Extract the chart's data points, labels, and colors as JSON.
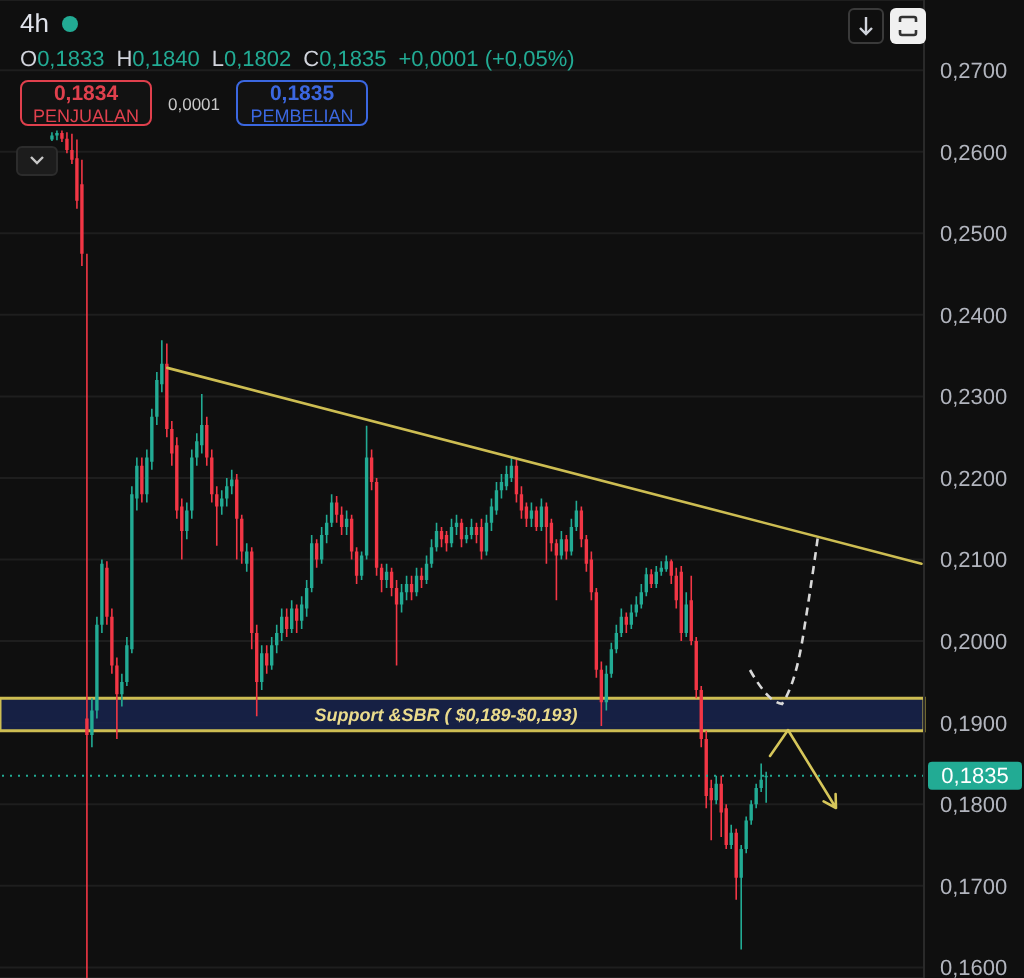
{
  "chart_data": {
    "type": "candlestick",
    "title": "4h",
    "annotations": [
      "O0,1833",
      "H0,1840",
      "L0,1802",
      "C0,1835",
      "+0,0001 (+0,05%)",
      "0,1834",
      "PENJUALAN",
      "0,0001",
      "0,1835",
      "PEMBELIAN"
    ],
    "categories": [
      null,
      null,
      null,
      null,
      null,
      null,
      null,
      null,
      null,
      null,
      null,
      null,
      null,
      null,
      null,
      null,
      null,
      null,
      null,
      null,
      null,
      null,
      null,
      null,
      null,
      null,
      null,
      null,
      null,
      null,
      null,
      null,
      null,
      null,
      null,
      null,
      null,
      null,
      null,
      null,
      null,
      null,
      null,
      null,
      null,
      null,
      null,
      null,
      null,
      null,
      null,
      null,
      null,
      null,
      null,
      null,
      null,
      null,
      null,
      null,
      null,
      null,
      null,
      null,
      null,
      null,
      null,
      null,
      null,
      null,
      null,
      null,
      null,
      null,
      null,
      null,
      null,
      null,
      null,
      null,
      null,
      null,
      null,
      null,
      null,
      null,
      null,
      null,
      null,
      null,
      null,
      null,
      null,
      null,
      null,
      null,
      null,
      null,
      null,
      null,
      null,
      null,
      null,
      null,
      null,
      null,
      null,
      null,
      null,
      null,
      null,
      null,
      null,
      null,
      null,
      null,
      null,
      null,
      null,
      null,
      null,
      null,
      null,
      null,
      null,
      null,
      null,
      null,
      null,
      null,
      null,
      null,
      null,
      null,
      null,
      null,
      null,
      null,
      null,
      null,
      null,
      null,
      null,
      null,
      null,
      null,
      null,
      null,
      null,
      null,
      null,
      null,
      null,
      null,
      null,
      null,
      null,
      null,
      null,
      null,
      null,
      null,
      null,
      null,
      null,
      null,
      null,
      null,
      null,
      null,
      null,
      null,
      null,
      null,
      null,
      null,
      null,
      null,
      null,
      null,
      null,
      null,
      null,
      null,
      null
    ],
    "ohlc": [
      null,
      null,
      null,
      null,
      null,
      null,
      null,
      null,
      null,
      null,
      [
        0.2615,
        0.2624,
        0.2613,
        0.262
      ],
      [
        0.262,
        0.2626,
        0.2614,
        0.2623
      ],
      [
        0.2623,
        0.2626,
        0.2612,
        0.2616
      ],
      [
        0.2616,
        0.2624,
        0.2598,
        0.2602
      ],
      [
        0.2602,
        0.2622,
        0.2585,
        0.259
      ],
      [
        0.2592,
        0.2615,
        0.253,
        0.254
      ],
      [
        0.256,
        0.259,
        0.246,
        0.2475
      ],
      [
        0.1905,
        0.2475,
        0.1587,
        0.1885
      ],
      [
        0.1885,
        0.193,
        0.187,
        0.1915
      ],
      [
        0.1915,
        0.203,
        0.1905,
        0.202
      ],
      [
        0.202,
        0.21,
        0.201,
        0.2095
      ],
      [
        0.209,
        0.2098,
        0.202,
        0.203
      ],
      [
        0.203,
        0.204,
        0.196,
        0.197
      ],
      [
        0.197,
        0.198,
        0.188,
        0.1935
      ],
      [
        0.1935,
        0.196,
        0.192,
        0.195
      ],
      [
        0.195,
        0.2005,
        0.1945,
        0.1995
      ],
      [
        0.199,
        0.219,
        0.1985,
        0.218
      ],
      [
        0.2175,
        0.2225,
        0.216,
        0.2215
      ],
      [
        0.2215,
        0.2225,
        0.217,
        0.218
      ],
      [
        0.218,
        0.2235,
        0.217,
        0.2225
      ],
      [
        0.222,
        0.2285,
        0.221,
        0.2275
      ],
      [
        0.2275,
        0.233,
        0.2265,
        0.232
      ],
      [
        0.2315,
        0.2369,
        0.2305,
        0.234
      ],
      [
        0.234,
        0.2365,
        0.225,
        0.226
      ],
      [
        0.226,
        0.227,
        0.2215,
        0.223
      ],
      [
        0.224,
        0.225,
        0.215,
        0.216
      ],
      [
        0.2165,
        0.2175,
        0.21,
        0.2135
      ],
      [
        0.2135,
        0.217,
        0.2125,
        0.216
      ],
      [
        0.216,
        0.2235,
        0.215,
        0.2225
      ],
      [
        0.2225,
        0.2255,
        0.2215,
        0.2245
      ],
      [
        0.224,
        0.2303,
        0.223,
        0.2265
      ],
      [
        0.2265,
        0.2275,
        0.2215,
        0.2225
      ],
      [
        0.2225,
        0.2235,
        0.217,
        0.218
      ],
      [
        0.218,
        0.219,
        0.2117,
        0.2165
      ],
      [
        0.2165,
        0.2185,
        0.2155,
        0.2175
      ],
      [
        0.2175,
        0.22,
        0.2165,
        0.219
      ],
      [
        0.219,
        0.221,
        0.218,
        0.2198
      ],
      [
        0.2198,
        0.2205,
        0.21,
        0.215
      ],
      [
        0.215,
        0.2155,
        0.2095,
        0.211
      ],
      [
        0.2095,
        0.212,
        0.2085,
        0.211
      ],
      [
        0.211,
        0.2115,
        0.199,
        0.201
      ],
      [
        0.201,
        0.202,
        0.1908,
        0.195
      ],
      [
        0.195,
        0.1995,
        0.194,
        0.1985
      ],
      [
        0.1985,
        0.1995,
        0.196,
        0.197
      ],
      [
        0.197,
        0.2005,
        0.1965,
        0.1995
      ],
      [
        0.1995,
        0.202,
        0.1985,
        0.201
      ],
      [
        0.201,
        0.204,
        0.2,
        0.203
      ],
      [
        0.203,
        0.204,
        0.2005,
        0.2015
      ],
      [
        0.2015,
        0.205,
        0.201,
        0.204
      ],
      [
        0.204,
        0.2045,
        0.201,
        0.2025
      ],
      [
        0.2025,
        0.2055,
        0.2015,
        0.2045
      ],
      [
        0.204,
        0.2075,
        0.203,
        0.2065
      ],
      [
        0.2065,
        0.213,
        0.206,
        0.212
      ],
      [
        0.212,
        0.2125,
        0.209,
        0.21
      ],
      [
        0.21,
        0.214,
        0.2095,
        0.213
      ],
      [
        0.213,
        0.2155,
        0.212,
        0.2145
      ],
      [
        0.2145,
        0.218,
        0.214,
        0.217
      ],
      [
        0.217,
        0.2178,
        0.2145,
        0.2155
      ],
      [
        0.2155,
        0.2165,
        0.213,
        0.214
      ],
      [
        0.214,
        0.216,
        0.213,
        0.215
      ],
      [
        0.215,
        0.2155,
        0.21,
        0.211
      ],
      [
        0.211,
        0.2115,
        0.207,
        0.208
      ],
      [
        0.208,
        0.211,
        0.2075,
        0.2105
      ],
      [
        0.2105,
        0.2264,
        0.21,
        0.2225
      ],
      [
        0.2225,
        0.2235,
        0.2185,
        0.2195
      ],
      [
        0.2195,
        0.22,
        0.208,
        0.209
      ],
      [
        0.209,
        0.2095,
        0.206,
        0.2075
      ],
      [
        0.2075,
        0.2095,
        0.2065,
        0.2085
      ],
      [
        0.2085,
        0.209,
        0.2055,
        0.2065
      ],
      [
        0.2065,
        0.2075,
        0.197,
        0.2045
      ],
      [
        0.2045,
        0.207,
        0.2035,
        0.206
      ],
      [
        0.206,
        0.208,
        0.205,
        0.207
      ],
      [
        0.207,
        0.208,
        0.205,
        0.206
      ],
      [
        0.206,
        0.209,
        0.2055,
        0.208
      ],
      [
        0.208,
        0.209,
        0.2065,
        0.2075
      ],
      [
        0.2075,
        0.2105,
        0.207,
        0.2095
      ],
      [
        0.2095,
        0.2125,
        0.209,
        0.2115
      ],
      [
        0.2115,
        0.2145,
        0.211,
        0.2135
      ],
      [
        0.2135,
        0.214,
        0.2115,
        0.2125
      ],
      [
        0.213,
        0.2135,
        0.211,
        0.212
      ],
      [
        0.212,
        0.215,
        0.2115,
        0.214
      ],
      [
        0.214,
        0.2155,
        0.213,
        0.2145
      ],
      [
        0.2145,
        0.215,
        0.2115,
        0.2125
      ],
      [
        0.2125,
        0.214,
        0.212,
        0.213
      ],
      [
        0.213,
        0.215,
        0.2125,
        0.214
      ],
      [
        0.214,
        0.2145,
        0.212,
        0.213
      ],
      [
        0.214,
        0.215,
        0.21,
        0.211
      ],
      [
        0.211,
        0.2155,
        0.2105,
        0.2145
      ],
      [
        0.2145,
        0.2175,
        0.2135,
        0.2165
      ],
      [
        0.216,
        0.2195,
        0.2155,
        0.2185
      ],
      [
        0.2185,
        0.2205,
        0.2175,
        0.2195
      ],
      [
        0.219,
        0.2215,
        0.2185,
        0.2205
      ],
      [
        0.22,
        0.2227,
        0.2195,
        0.2215
      ],
      [
        0.2215,
        0.2222,
        0.217,
        0.218
      ],
      [
        0.218,
        0.219,
        0.215,
        0.216
      ],
      [
        0.2165,
        0.217,
        0.214,
        0.215
      ],
      [
        0.215,
        0.217,
        0.214,
        0.216
      ],
      [
        0.216,
        0.2165,
        0.2135,
        0.214
      ],
      [
        0.214,
        0.2175,
        0.2135,
        0.2165
      ],
      [
        0.2165,
        0.217,
        0.2095,
        0.214
      ],
      [
        0.2145,
        0.215,
        0.211,
        0.212
      ],
      [
        0.212,
        0.2125,
        0.205,
        0.2105
      ],
      [
        0.2105,
        0.2135,
        0.21,
        0.2125
      ],
      [
        0.2125,
        0.213,
        0.21,
        0.211
      ],
      [
        0.211,
        0.215,
        0.2105,
        0.214
      ],
      [
        0.214,
        0.2172,
        0.2135,
        0.216
      ],
      [
        0.216,
        0.2165,
        0.2115,
        0.2125
      ],
      [
        0.2125,
        0.213,
        0.2085,
        0.2095
      ],
      [
        0.21,
        0.211,
        0.205,
        0.206
      ],
      [
        0.206,
        0.2065,
        0.1955,
        0.1965
      ],
      [
        0.1965,
        0.1975,
        0.1896,
        0.1925
      ],
      [
        0.1925,
        0.197,
        0.1915,
        0.196
      ],
      [
        0.196,
        0.1998,
        0.1955,
        0.199
      ],
      [
        0.199,
        0.202,
        0.1985,
        0.201
      ],
      [
        0.201,
        0.204,
        0.2005,
        0.203
      ],
      [
        0.203,
        0.2035,
        0.201,
        0.202
      ],
      [
        0.202,
        0.2045,
        0.2015,
        0.2035
      ],
      [
        0.2035,
        0.2055,
        0.203,
        0.2045
      ],
      [
        0.2045,
        0.207,
        0.204,
        0.206
      ],
      [
        0.206,
        0.209,
        0.2055,
        0.2082
      ],
      [
        0.2082,
        0.2088,
        0.2065,
        0.207
      ],
      [
        0.207,
        0.2092,
        0.2065,
        0.2085
      ],
      [
        0.2085,
        0.2098,
        0.208,
        0.209
      ],
      [
        0.2088,
        0.2105,
        0.2085,
        0.2098
      ],
      [
        0.2098,
        0.21,
        0.207,
        0.208
      ],
      [
        0.208,
        0.209,
        0.204,
        0.205
      ],
      [
        0.2085,
        0.2092,
        0.2,
        0.201
      ],
      [
        0.201,
        0.206,
        0.2005,
        0.2045
      ],
      [
        0.205,
        0.208,
        0.1995,
        0.2
      ],
      [
        0.2,
        0.2005,
        0.193,
        0.194
      ],
      [
        0.194,
        0.1945,
        0.187,
        0.188
      ],
      [
        0.188,
        0.189,
        0.1795,
        0.181
      ],
      [
        0.182,
        0.183,
        0.1756,
        0.1805
      ],
      [
        0.1805,
        0.1835,
        0.18,
        0.1825
      ],
      [
        0.1825,
        0.1835,
        0.176,
        0.179
      ],
      [
        0.1795,
        0.18,
        0.1745,
        0.175
      ],
      [
        0.175,
        0.1775,
        0.1745,
        0.1765
      ],
      [
        0.1765,
        0.177,
        0.1683,
        0.171
      ],
      [
        0.171,
        0.175,
        0.1622,
        0.1745
      ],
      [
        0.1745,
        0.1785,
        0.174,
        0.178
      ],
      [
        0.178,
        0.1805,
        0.1775,
        0.18
      ],
      [
        0.18,
        0.1825,
        0.1795,
        0.182
      ],
      [
        0.182,
        0.185,
        0.1815,
        0.183
      ],
      [
        0.1833,
        0.184,
        0.1802,
        0.1835
      ],
      null,
      null,
      null,
      null,
      null,
      null,
      null,
      null,
      null,
      null,
      null,
      null,
      null,
      null,
      null,
      null,
      null,
      null,
      null,
      null,
      null,
      null,
      null,
      null,
      null,
      null,
      null,
      null,
      null,
      null,
      null
    ],
    "colors": [
      null,
      null,
      null,
      null,
      null,
      null,
      null,
      null,
      null,
      null,
      "#22ab94",
      "#22ab94",
      "#f23645",
      "#f23645",
      "#f23645",
      "#f23645",
      "#f23645",
      "#f23645",
      "#22ab94",
      "#22ab94",
      "#22ab94",
      "#f23645",
      "#f23645",
      "#f23645",
      "#22ab94",
      "#22ab94",
      "#22ab94",
      "#22ab94",
      "#f23645",
      "#22ab94",
      "#22ab94",
      "#22ab94",
      "#22ab94",
      "#f23645",
      "#f23645",
      "#f23645",
      "#f23645",
      "#22ab94",
      "#22ab94",
      "#22ab94",
      "#22ab94",
      "#f23645",
      "#f23645",
      "#f23645",
      "#22ab94",
      "#22ab94",
      "#22ab94",
      "#f23645",
      "#f23645",
      "#22ab94",
      "#f23645",
      "#f23645",
      "#22ab94",
      "#f23645",
      "#22ab94",
      "#22ab94",
      "#22ab94",
      "#f23645",
      "#22ab94",
      "#f23645",
      "#22ab94",
      "#22ab94",
      "#22ab94",
      "#f23645",
      "#22ab94",
      "#22ab94",
      "#22ab94",
      "#f23645",
      "#f23645",
      "#22ab94",
      "#f23645",
      "#f23645",
      "#22ab94",
      "#22ab94",
      "#f23645",
      "#f23645",
      "#f23645",
      "#22ab94",
      "#f23645",
      "#f23645",
      "#22ab94",
      "#22ab94",
      "#f23645",
      "#22ab94",
      "#f23645",
      "#22ab94",
      "#22ab94",
      "#22ab94",
      "#f23645",
      "#f23645",
      "#22ab94",
      "#22ab94",
      "#f23645",
      "#22ab94",
      "#22ab94",
      "#f23645",
      "#f23645",
      "#22ab94",
      "#22ab94",
      "#22ab94",
      "#22ab94",
      "#22ab94",
      "#22ab94",
      "#f23645",
      "#f23645",
      "#f23645",
      "#22ab94",
      "#f23645",
      "#22ab94",
      "#f23645",
      "#f23645",
      "#f23645",
      "#22ab94",
      "#f23645",
      "#22ab94",
      "#22ab94",
      "#f23645",
      "#f23645",
      "#f23645",
      "#f23645",
      "#f23645",
      "#22ab94",
      "#22ab94",
      "#22ab94",
      "#22ab94",
      "#f23645",
      "#22ab94",
      "#22ab94",
      "#22ab94",
      "#22ab94",
      "#f23645",
      "#22ab94",
      "#22ab94",
      "#22ab94",
      "#f23645",
      "#f23645",
      "#f23645",
      "#22ab94",
      "#f23645",
      "#f23645",
      "#f23645",
      "#f23645",
      "#f23645",
      "#22ab94",
      "#f23645",
      "#f23645",
      "#22ab94",
      "#f23645",
      "#22ab94",
      "#22ab94",
      "#22ab94",
      "#22ab94",
      "#22ab94",
      "#22ab94",
      null,
      null,
      null,
      null,
      null,
      null,
      null,
      null,
      null,
      null,
      null,
      null,
      null,
      null,
      null,
      null,
      null,
      null,
      null,
      null,
      null,
      null,
      null,
      null,
      null,
      null,
      null,
      null,
      null,
      null,
      null
    ],
    "series": [
      {
        "type": "line",
        "color": "#cdbd52",
        "values": [
          null,
          null,
          null,
          null,
          null,
          null,
          null,
          null,
          null,
          null,
          null,
          null,
          null,
          null,
          null,
          null,
          null,
          null,
          null,
          null,
          null,
          null,
          null,
          null,
          null,
          null,
          null,
          null,
          null,
          null,
          null,
          null,
          null,
          0.2335,
          null,
          null,
          null,
          null,
          null,
          null,
          null,
          null,
          null,
          null,
          null,
          null,
          null,
          null,
          null,
          null,
          null,
          null,
          null,
          null,
          null,
          null,
          null,
          null,
          null,
          null,
          null,
          null,
          null,
          null,
          null,
          null,
          null,
          null,
          null,
          null,
          null,
          null,
          null,
          null,
          null,
          null,
          null,
          null,
          null,
          null,
          null,
          null,
          null,
          null,
          null,
          null,
          null,
          null,
          null,
          null,
          null,
          null,
          null,
          null,
          null,
          null,
          null,
          null,
          null,
          null,
          null,
          null,
          null,
          null,
          null,
          null,
          null,
          null,
          null,
          null,
          null,
          null,
          null,
          null,
          null,
          null,
          null,
          null,
          null,
          null,
          null,
          null,
          null,
          null,
          null,
          null,
          null,
          null,
          null,
          null,
          null,
          null,
          null,
          null,
          null,
          null,
          null,
          null,
          null,
          null,
          null,
          null,
          null,
          null,
          null,
          null,
          null,
          null,
          null,
          null,
          null,
          null,
          null,
          null,
          null,
          null,
          null,
          null,
          null,
          null,
          null,
          null,
          null,
          null,
          null,
          null,
          null,
          null,
          null,
          null,
          null,
          null,
          null,
          null,
          null,
          null,
          null,
          null,
          null,
          null,
          null,
          null,
          null,
          null,
          0.2095
        ]
      }
    ],
    "marker": "none",
    "line_style": "solid",
    "ylim": [
      0.1587,
      0.2786
    ],
    "yticks": [
      {
        "value": 0.16,
        "label": "0,1600"
      },
      {
        "value": 0.17,
        "label": "0,1700"
      },
      {
        "value": 0.18,
        "label": "0,1800"
      },
      {
        "value": 0.19,
        "label": "0,1900"
      },
      {
        "value": 0.2,
        "label": "0,2000"
      },
      {
        "value": 0.21,
        "label": "0,2100"
      },
      {
        "value": 0.22,
        "label": "0,2200"
      },
      {
        "value": 0.23,
        "label": "0,2300"
      },
      {
        "value": 0.24,
        "label": "0,2400"
      },
      {
        "value": 0.25,
        "label": "0,2500"
      },
      {
        "value": 0.26,
        "label": "0,2600"
      },
      {
        "value": 0.27,
        "label": "0,2700"
      }
    ],
    "grid": "y",
    "tick_labels": "y",
    "bands": [
      {
        "axis": "y",
        "from": 0.189,
        "to": 0.193,
        "label": "Support &SBR ( $0,189-$0,193)",
        "color": "#18234d"
      }
    ],
    "ref_lines": [
      {
        "axis": "y",
        "value": 0.1835,
        "label": "0,1835",
        "color": "#22ab94",
        "line_style": "dotted"
      }
    ]
  }
}
